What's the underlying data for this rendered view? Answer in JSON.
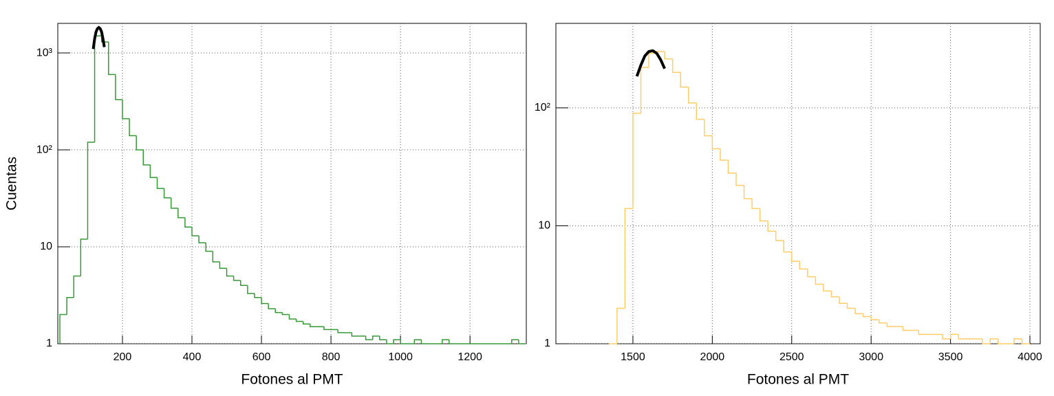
{
  "chart_data": [
    {
      "type": "histogram",
      "x_label": "Fotones al PMT",
      "y_label": "Cuentas",
      "log_y": true,
      "grid": true,
      "color": "#339933",
      "xlim": [
        14,
        1362
      ],
      "ylim": [
        1,
        2020
      ],
      "xticks": [
        200,
        400,
        600,
        800,
        1000,
        1200
      ],
      "yticks": [
        1,
        10,
        {
          "value": 100,
          "label": "10²"
        },
        {
          "value": 1000,
          "label": "10³"
        }
      ],
      "bins": [
        20,
        40,
        60,
        80,
        100,
        120,
        140,
        160,
        180,
        200,
        220,
        240,
        260,
        280,
        300,
        320,
        340,
        360,
        380,
        400,
        420,
        440,
        460,
        480,
        500,
        520,
        540,
        560,
        580,
        600,
        620,
        640,
        660,
        680,
        700,
        720,
        740,
        760,
        780,
        800,
        820,
        840,
        860,
        880,
        900,
        920,
        940,
        960,
        980,
        1000,
        1020,
        1040,
        1060,
        1080,
        1100,
        1120,
        1140,
        1160,
        1180,
        1200,
        1220,
        1240,
        1260,
        1280,
        1300,
        1320,
        1340,
        1360
      ],
      "values": [
        2,
        3,
        5,
        12,
        120,
        1500,
        1300,
        600,
        330,
        210,
        140,
        100,
        70,
        52,
        40,
        32,
        25,
        20,
        16,
        13,
        11,
        9,
        7,
        6,
        5,
        4.5,
        4,
        3.3,
        3,
        2.6,
        2.3,
        2.1,
        2,
        1.8,
        1.7,
        1.6,
        1.5,
        1.5,
        1.4,
        1.4,
        1.3,
        1.3,
        1.2,
        1.2,
        1.1,
        1.2,
        1.1,
        1,
        1.1,
        1,
        1,
        1.1,
        1,
        1,
        1,
        1.1,
        1,
        1,
        1,
        1,
        1,
        1,
        1,
        1,
        1,
        1.1,
        1
      ],
      "fit": {
        "color": "#000000",
        "x": [
          116,
          120,
          124,
          128,
          132,
          136,
          140,
          144,
          148
        ],
        "values": [
          1100,
          1400,
          1650,
          1780,
          1830,
          1780,
          1650,
          1400,
          1150
        ]
      }
    },
    {
      "type": "histogram",
      "x_label": "Fotones al PMT",
      "log_y": true,
      "grid": true,
      "color": "#ffcc66",
      "xlim": [
        1015,
        4065
      ],
      "ylim": [
        1,
        520
      ],
      "xticks": [
        1500,
        2000,
        2500,
        3000,
        3500,
        4000
      ],
      "yticks": [
        1,
        10,
        {
          "value": 100,
          "label": "10²"
        }
      ],
      "bins": [
        1350,
        1400,
        1450,
        1500,
        1550,
        1600,
        1650,
        1700,
        1750,
        1800,
        1850,
        1900,
        1950,
        2000,
        2050,
        2100,
        2150,
        2200,
        2250,
        2300,
        2350,
        2400,
        2450,
        2500,
        2550,
        2600,
        2650,
        2700,
        2750,
        2800,
        2850,
        2900,
        2950,
        3000,
        3050,
        3100,
        3150,
        3200,
        3250,
        3300,
        3350,
        3400,
        3450,
        3500,
        3550,
        3600,
        3650,
        3700,
        3750,
        3800,
        3850,
        3900,
        3950,
        4000
      ],
      "values": [
        1,
        2,
        14,
        90,
        220,
        290,
        300,
        260,
        200,
        150,
        110,
        80,
        58,
        45,
        36,
        28,
        22,
        17,
        14,
        11,
        9,
        7.5,
        6,
        5,
        4.3,
        3.7,
        3.2,
        2.8,
        2.5,
        2.2,
        2,
        1.8,
        1.7,
        1.6,
        1.5,
        1.4,
        1.4,
        1.3,
        1.3,
        1.2,
        1.2,
        1.2,
        1.1,
        1.2,
        1.1,
        1.1,
        1.1,
        1,
        1.1,
        1,
        1,
        1.1,
        1
      ],
      "fit": {
        "color": "#000000",
        "x": [
          1525,
          1550,
          1575,
          1600,
          1625,
          1650,
          1675,
          1700
        ],
        "values": [
          185,
          230,
          275,
          300,
          305,
          290,
          255,
          215
        ]
      }
    }
  ]
}
